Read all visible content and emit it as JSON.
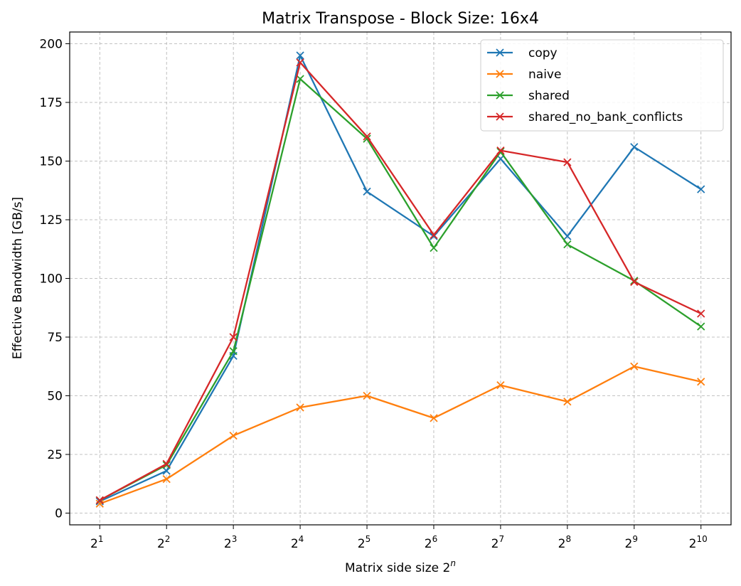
{
  "chart_data": {
    "type": "line",
    "title": "Matrix Transpose - Block Size: 16x4",
    "xlabel": "Matrix side size 2",
    "xlabel_sup": "n",
    "ylabel": "Effective Bandwidth [GB/s]",
    "x": [
      1,
      2,
      3,
      4,
      5,
      6,
      7,
      8,
      9,
      10
    ],
    "x_tick_base": "2",
    "y_ticks": [
      0,
      25,
      50,
      75,
      100,
      125,
      150,
      175,
      200
    ],
    "ylim": [
      -5,
      205
    ],
    "xlim": [
      0.55,
      10.45
    ],
    "grid": true,
    "legend_position": "top-right",
    "marker": "x",
    "series": [
      {
        "name": "copy",
        "color": "#1f77b4",
        "values": [
          5,
          18,
          67,
          195,
          137,
          118,
          151,
          118,
          156,
          138
        ]
      },
      {
        "name": "naive",
        "color": "#ff7f0e",
        "values": [
          4,
          14.5,
          33,
          45,
          50,
          40.5,
          54.5,
          47.5,
          62.5,
          56
        ]
      },
      {
        "name": "shared",
        "color": "#2ca02c",
        "values": [
          5.5,
          20.5,
          69,
          185,
          159.5,
          113,
          154,
          114.5,
          99,
          79.5
        ]
      },
      {
        "name": "shared_no_bank_conflicts",
        "color": "#d62728",
        "values": [
          5.5,
          21,
          75,
          192,
          160.5,
          118.5,
          154.5,
          149.5,
          98.5,
          85
        ]
      }
    ]
  }
}
